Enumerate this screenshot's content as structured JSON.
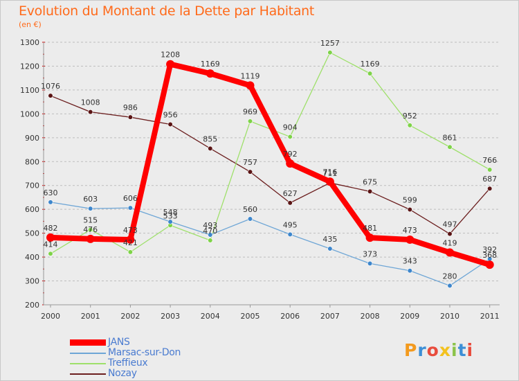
{
  "title": "Evolution du Montant de la Dette par Habitant",
  "unit": "(en €)",
  "logo": "Proxiti",
  "colors": {
    "title": "#ff6a1a",
    "grid": "#bdbdbd",
    "legend_text": "#4a7bd0"
  },
  "chart_data": {
    "type": "line",
    "title": "Evolution du Montant de la Dette par Habitant",
    "subtitle": "(en €)",
    "xlabel": "",
    "ylabel": "",
    "x": [
      "2000",
      "2001",
      "2002",
      "2003",
      "2004",
      "2005",
      "2006",
      "2007",
      "2008",
      "2009",
      "2010",
      "2011"
    ],
    "ylim": [
      200,
      1300
    ],
    "yticks": [
      "200",
      "300",
      "400",
      "500",
      "600",
      "700",
      "800",
      "900",
      "1000",
      "1100",
      "1200",
      "1300"
    ],
    "grid": "horizontal dashed",
    "legend": "bottom-left",
    "series": [
      {
        "name": "Nozay",
        "color": "#6b1e1e",
        "marker": "#5a1414",
        "values": [
          1076,
          1008,
          986,
          956,
          855,
          757,
          627,
          711,
          675,
          599,
          497,
          687
        ],
        "labels": [
          "1076",
          "1008",
          "986",
          "956",
          "855",
          "757",
          "627",
          "711",
          "675",
          "599",
          "497",
          "687"
        ]
      },
      {
        "name": "Treffieux",
        "color": "#9ee06a",
        "marker": "#7ed348",
        "values": [
          414,
          515,
          421,
          533,
          470,
          969,
          904,
          1257,
          1169,
          952,
          861,
          766
        ],
        "labels": [
          "414",
          "515",
          "421",
          "533",
          "470",
          "969",
          "904",
          "1257",
          "1169",
          "952",
          "861",
          "766"
        ]
      },
      {
        "name": "Marsac-sur-Don",
        "color": "#6ea6d6",
        "marker": "#3d86cc",
        "values": [
          630,
          603,
          606,
          548,
          493,
          560,
          495,
          435,
          373,
          343,
          280,
          392
        ],
        "labels": [
          "630",
          "603",
          "606",
          "548",
          "493",
          "560",
          "495",
          "435",
          "373",
          "343",
          "280",
          "392"
        ]
      },
      {
        "name": "JANS",
        "color": "#ff0000",
        "marker": "#ff0000",
        "values": [
          482,
          476,
          473,
          1208,
          1169,
          1119,
          792,
          716,
          481,
          473,
          419,
          368
        ],
        "labels": [
          "482",
          "476",
          "473",
          "1208",
          "1169",
          "1119",
          "792",
          "716",
          "481",
          "473",
          "419",
          "368"
        ]
      }
    ]
  },
  "legend_order": [
    "JANS",
    "Marsac-sur-Don",
    "Treffieux",
    "Nozay"
  ]
}
